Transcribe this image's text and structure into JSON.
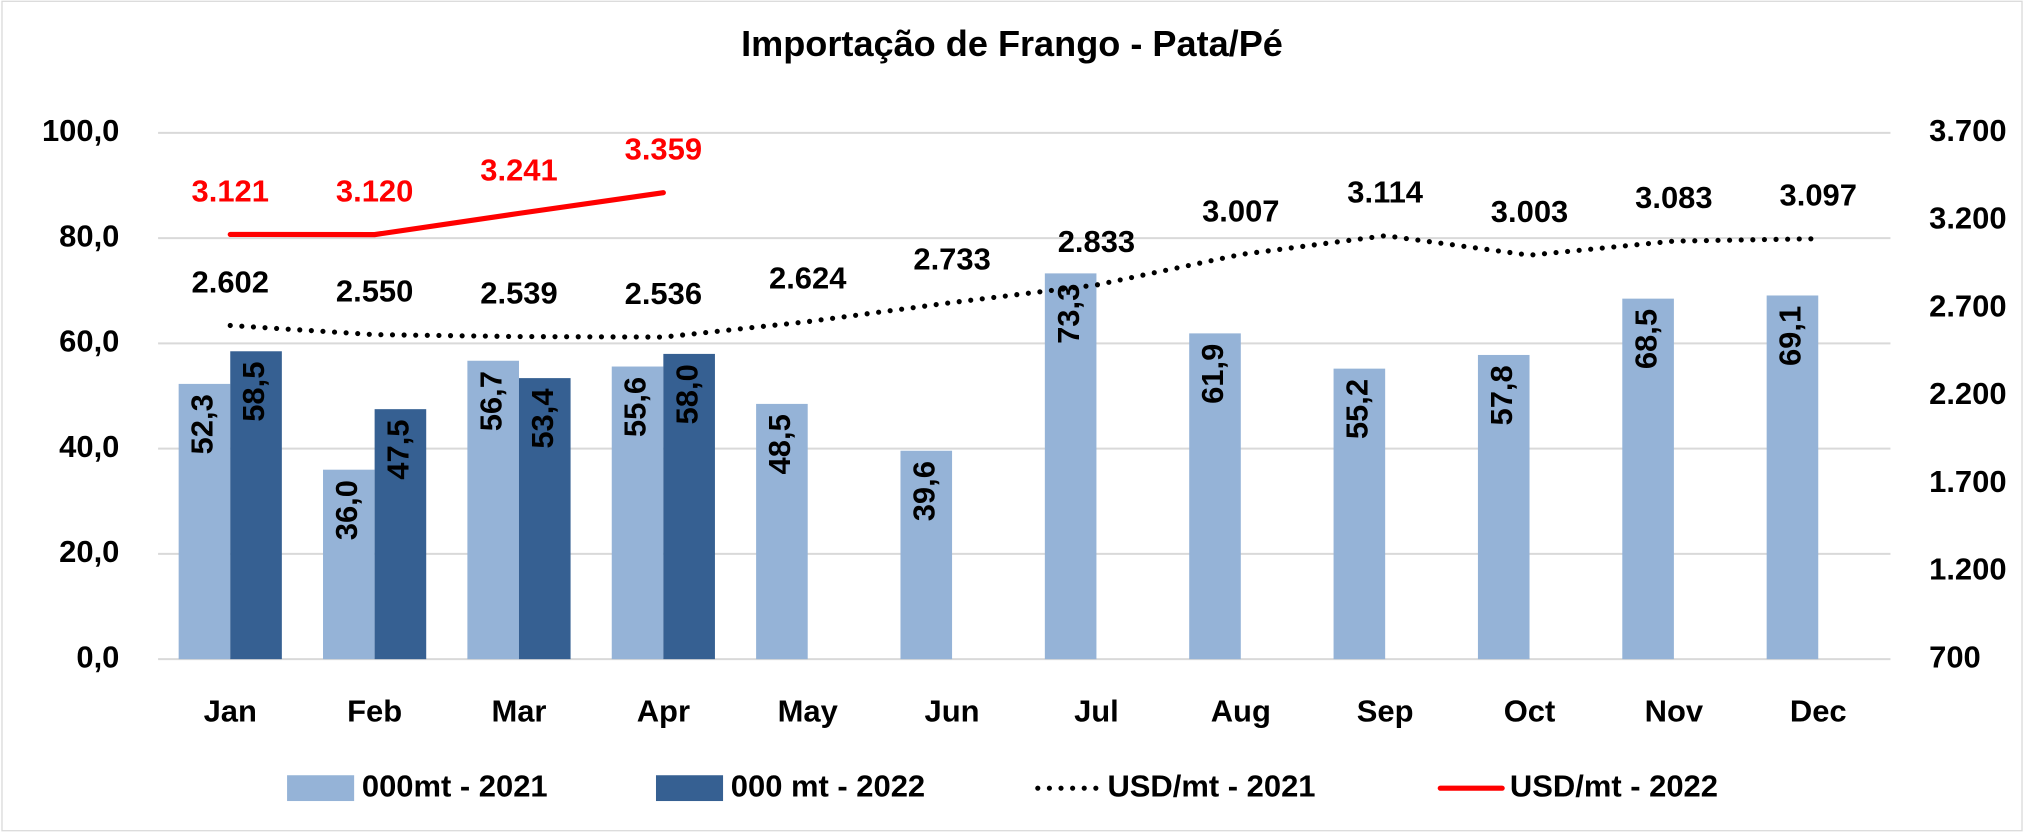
{
  "chart_data": {
    "type": "bar",
    "title": "Importação de Frango - Pata/Pé",
    "categories": [
      "Jan",
      "Feb",
      "Mar",
      "Apr",
      "May",
      "Jun",
      "Jul",
      "Aug",
      "Sep",
      "Oct",
      "Nov",
      "Dec"
    ],
    "series": [
      {
        "name": "000mt - 2021",
        "type": "bar",
        "color": "#95b3d7",
        "values": [
          52.3,
          36.0,
          56.7,
          55.6,
          48.5,
          39.6,
          73.3,
          61.9,
          55.2,
          57.8,
          68.5,
          69.1
        ],
        "value_labels": [
          "52,3",
          "36,0",
          "56,7",
          "55,6",
          "48,5",
          "39,6",
          "73,3",
          "61,9",
          "55,2",
          "57,8",
          "68,5",
          "69,1"
        ]
      },
      {
        "name": "000 mt - 2022",
        "type": "bar",
        "color": "#366092",
        "values": [
          58.5,
          47.5,
          53.4,
          58.0,
          null,
          null,
          null,
          null,
          null,
          null,
          null,
          null
        ],
        "value_labels": [
          "58,5",
          "47,5",
          "53,4",
          "58,0",
          null,
          null,
          null,
          null,
          null,
          null,
          null,
          null
        ]
      },
      {
        "name": "USD/mt - 2021",
        "type": "line",
        "axis": "y2",
        "color": "#000000",
        "dash": "dotted",
        "label_color": "#000000",
        "values": [
          2602,
          2550,
          2539,
          2536,
          2624,
          2733,
          2833,
          3007,
          3114,
          3003,
          3083,
          3097
        ],
        "value_labels": [
          "2.602",
          "2.550",
          "2.539",
          "2.536",
          "2.624",
          "2.733",
          "2.833",
          "3.007",
          "3.114",
          "3.003",
          "3.083",
          "3.097"
        ]
      },
      {
        "name": "USD/mt - 2022",
        "type": "line",
        "axis": "y2",
        "color": "#ff0000",
        "dash": "solid",
        "label_color": "#ff0000",
        "values": [
          3121,
          3120,
          3241,
          3359,
          null,
          null,
          null,
          null,
          null,
          null,
          null,
          null
        ],
        "value_labels": [
          "3.121",
          "3.120",
          "3.241",
          "3.359",
          null,
          null,
          null,
          null,
          null,
          null,
          null,
          null
        ]
      }
    ],
    "ylim": [
      0,
      100
    ],
    "yticks": [
      {
        "value": 0,
        "label": "0,0"
      },
      {
        "value": 20,
        "label": "20,0"
      },
      {
        "value": 40,
        "label": "40,0"
      },
      {
        "value": 60,
        "label": "60,0"
      },
      {
        "value": 80,
        "label": "80,0"
      },
      {
        "value": 100,
        "label": "100,0"
      }
    ],
    "y2lim": [
      700,
      3700
    ],
    "y2ticks": [
      700,
      {
        "value": 1200,
        "label": "1.200"
      },
      {
        "value": 1700,
        "label": "1.700"
      },
      {
        "value": 2200,
        "label": "2.200"
      },
      {
        "value": 2700,
        "label": "2.700"
      },
      {
        "value": 3200,
        "label": "3.200"
      },
      {
        "value": 3700,
        "label": "3.700"
      }
    ],
    "grid": true,
    "legend": "bottom"
  }
}
